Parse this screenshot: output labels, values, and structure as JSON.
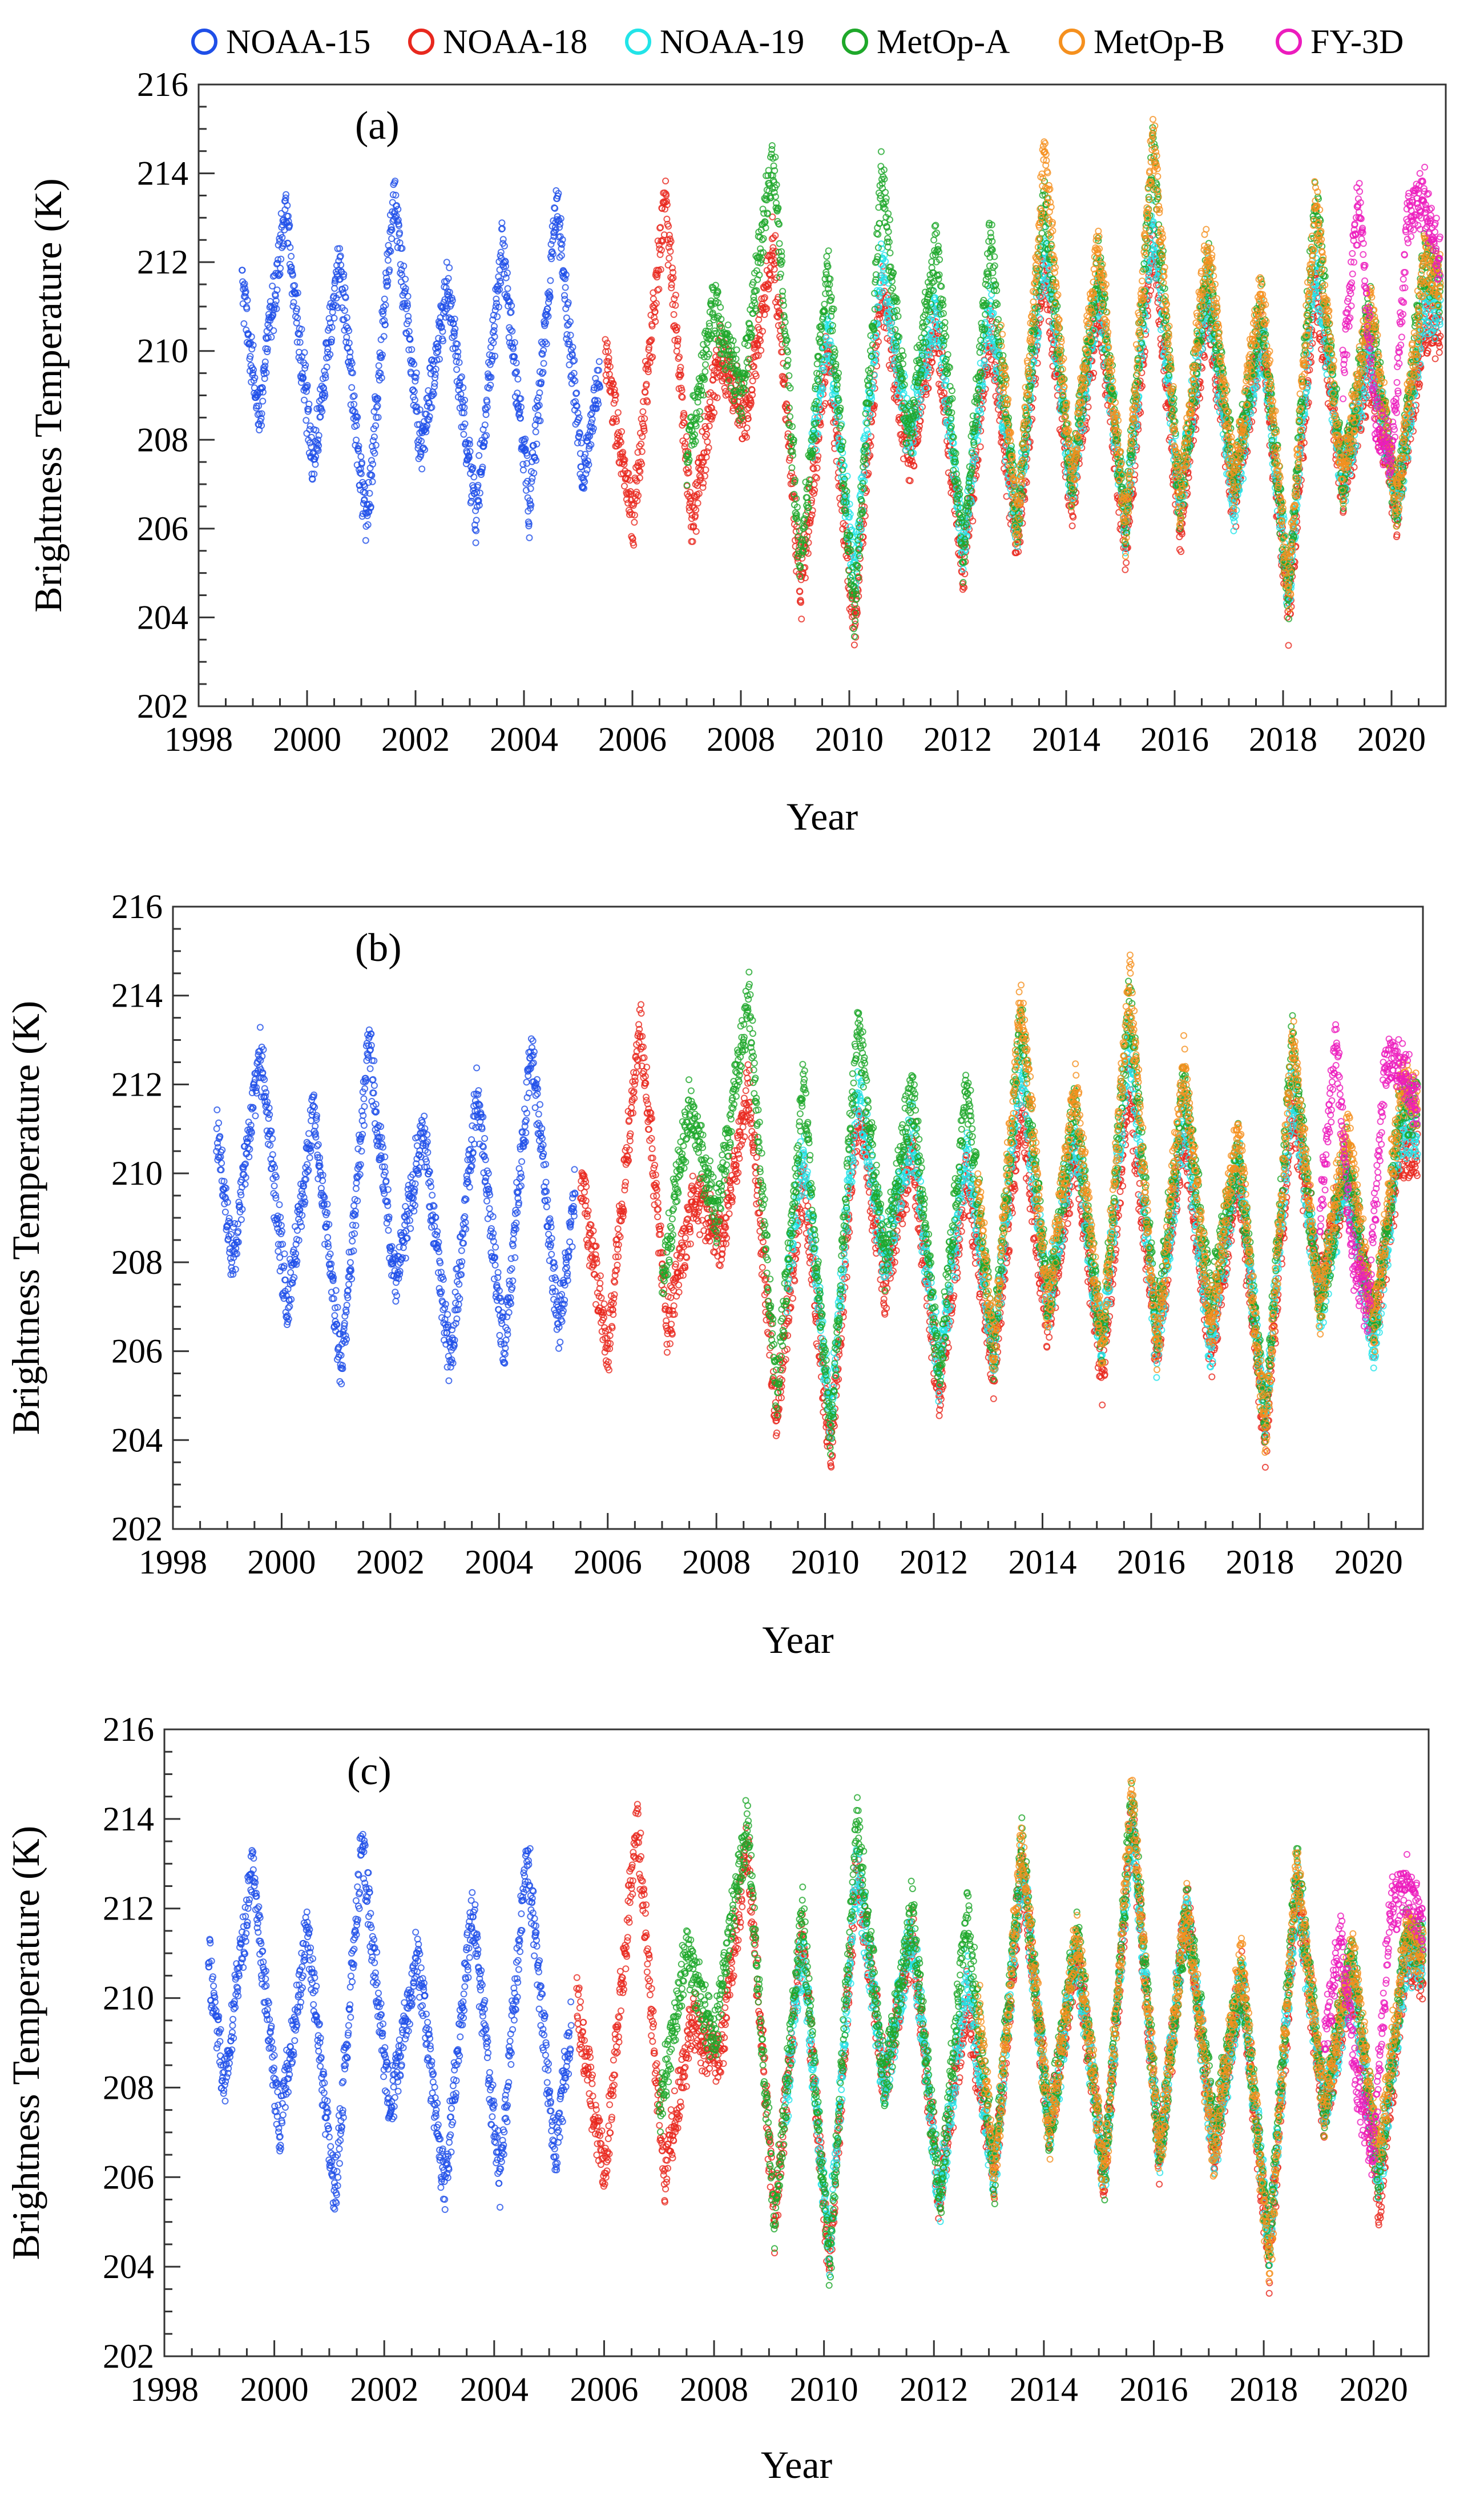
{
  "legend": [
    {
      "name": "NOAA-15",
      "color": "#1f4fe8"
    },
    {
      "name": "NOAA-18",
      "color": "#e8281e"
    },
    {
      "name": "NOAA-19",
      "color": "#22e4e8"
    },
    {
      "name": "MetOp-A",
      "color": "#1ea82a"
    },
    {
      "name": "MetOp-B",
      "color": "#f5901e"
    },
    {
      "name": "FY-3D",
      "color": "#ec1cbd"
    }
  ],
  "chart_data": [
    {
      "type": "scatter",
      "panel_label": "(a)",
      "xlabel": "Year",
      "ylabel": "Brightness Temperature (K)",
      "xlim": [
        1998,
        2021
      ],
      "ylim": [
        202,
        216
      ],
      "x_ticks": [
        "1998",
        "2000",
        "2002",
        "2004",
        "2006",
        "2008",
        "2010",
        "2012",
        "2014",
        "2016",
        "2018",
        "2020"
      ],
      "y_ticks": [
        "202",
        "204",
        "206",
        "208",
        "210",
        "212",
        "214",
        "216"
      ],
      "series": [
        {
          "name": "NOAA-15",
          "x": [
            1998.8,
            1999.1,
            1999.6,
            2000.1,
            2000.6,
            2001.1,
            2001.6,
            2002.1,
            2002.6,
            2003.1,
            2003.6,
            2004.1,
            2004.6,
            2005.1,
            2005.4
          ],
          "y": [
            211.5,
            208.5,
            213.2,
            207.5,
            212.0,
            206.0,
            213.5,
            207.8,
            211.5,
            206.2,
            212.3,
            206.5,
            213.3,
            207.0,
            209.5
          ]
        },
        {
          "name": "NOAA-18",
          "x": [
            2005.5,
            2006.0,
            2006.6,
            2007.1,
            2007.6,
            2008.1,
            2008.6,
            2009.1,
            2009.6,
            2010.1,
            2010.6,
            2011.1,
            2011.6,
            2012.1,
            2012.6,
            2013.1,
            2013.6,
            2014.1,
            2014.6,
            2015.1,
            2015.6,
            2016.1,
            2016.6,
            2017.1,
            2017.6,
            2018.1,
            2018.6,
            2019.1,
            2019.6,
            2020.1,
            2020.6,
            2020.9
          ],
          "y": [
            210.0,
            206.0,
            213.5,
            206.0,
            210.0,
            208.5,
            212.5,
            204.5,
            210.0,
            203.8,
            211.5,
            207.5,
            210.5,
            205.0,
            210.5,
            205.5,
            212.0,
            206.5,
            211.0,
            205.5,
            212.5,
            206.0,
            211.0,
            206.5,
            210.5,
            204.0,
            211.5,
            207.0,
            209.5,
            206.5,
            210.5,
            210.5
          ]
        },
        {
          "name": "NOAA-19",
          "x": [
            2009.3,
            2009.6,
            2010.1,
            2010.6,
            2011.1,
            2011.6,
            2012.1,
            2012.6,
            2013.1,
            2013.6,
            2014.1,
            2014.6,
            2015.1,
            2015.6,
            2016.1,
            2016.6,
            2017.1,
            2017.6,
            2018.1,
            2018.6,
            2019.1,
            2019.6,
            2020.1,
            2020.6,
            2020.9
          ],
          "y": [
            207.5,
            210.5,
            205.0,
            212.0,
            208.0,
            211.0,
            205.5,
            211.0,
            206.0,
            212.5,
            207.0,
            211.5,
            206.0,
            213.0,
            206.5,
            211.5,
            206.5,
            210.5,
            204.5,
            212.0,
            207.0,
            210.0,
            206.5,
            211.0,
            211.0
          ]
        },
        {
          "name": "MetOp-A",
          "x": [
            2007.0,
            2007.5,
            2008.0,
            2008.6,
            2009.1,
            2009.6,
            2010.1,
            2010.6,
            2011.1,
            2011.6,
            2012.1,
            2012.6,
            2013.1,
            2013.6,
            2014.1,
            2014.6,
            2015.1,
            2015.6,
            2016.1,
            2016.6,
            2017.1,
            2017.6,
            2018.1,
            2018.6,
            2019.1,
            2019.6,
            2020.1,
            2020.6,
            2020.9
          ],
          "y": [
            207.5,
            211.0,
            209.0,
            214.5,
            205.0,
            212.0,
            204.0,
            214.0,
            208.0,
            212.5,
            205.5,
            212.5,
            206.0,
            213.5,
            207.0,
            212.0,
            206.0,
            214.5,
            206.5,
            212.0,
            207.0,
            211.0,
            204.5,
            213.5,
            207.0,
            211.0,
            206.5,
            212.0,
            211.5
          ]
        },
        {
          "name": "MetOp-B",
          "x": [
            2012.8,
            2013.1,
            2013.6,
            2014.1,
            2014.6,
            2015.1,
            2015.6,
            2016.1,
            2016.6,
            2017.1,
            2017.6,
            2018.1,
            2018.6,
            2019.1,
            2019.6,
            2020.1,
            2020.6,
            2020.9
          ],
          "y": [
            210.0,
            206.0,
            214.5,
            207.0,
            212.5,
            206.0,
            215.0,
            206.5,
            212.5,
            207.0,
            211.5,
            204.5,
            213.5,
            207.0,
            211.0,
            206.5,
            212.0,
            211.5
          ]
        },
        {
          "name": "FY-3D",
          "x": [
            2019.1,
            2019.4,
            2019.7,
            2020.0,
            2020.3,
            2020.6,
            2020.9
          ],
          "y": [
            209.5,
            213.5,
            208.5,
            207.5,
            213.0,
            213.5,
            212.0
          ]
        }
      ]
    },
    {
      "type": "scatter",
      "panel_label": "(b)",
      "xlabel": "Year",
      "ylabel": "Brightness Temperature (K)",
      "xlim": [
        1998,
        2021
      ],
      "ylim": [
        202,
        216
      ],
      "x_ticks": [
        "1998",
        "2000",
        "2002",
        "2004",
        "2006",
        "2008",
        "2010",
        "2012",
        "2014",
        "2016",
        "2018",
        "2020"
      ],
      "y_ticks": [
        "202",
        "204",
        "206",
        "208",
        "210",
        "212",
        "214",
        "216"
      ],
      "series": [
        {
          "name": "NOAA-15",
          "x": [
            1998.8,
            1999.1,
            1999.6,
            2000.1,
            2000.6,
            2001.1,
            2001.6,
            2002.1,
            2002.6,
            2003.1,
            2003.6,
            2004.1,
            2004.6,
            2005.1,
            2005.4
          ],
          "y": [
            211.0,
            208.0,
            212.8,
            207.0,
            211.5,
            205.5,
            213.0,
            207.5,
            211.0,
            205.8,
            211.8,
            206.0,
            213.0,
            206.5,
            209.5
          ]
        },
        {
          "name": "NOAA-18",
          "x": [
            2005.5,
            2006.0,
            2006.6,
            2007.1,
            2007.6,
            2008.1,
            2008.6,
            2009.1,
            2009.6,
            2010.1,
            2010.6,
            2011.1,
            2011.6,
            2012.1,
            2012.6,
            2013.1,
            2013.6,
            2014.1,
            2014.6,
            2015.1,
            2015.6,
            2016.1,
            2016.6,
            2017.1,
            2017.6,
            2018.1,
            2018.6,
            2019.1,
            2019.6,
            2020.1,
            2020.6,
            2020.9
          ],
          "y": [
            210.0,
            206.0,
            213.5,
            206.5,
            209.5,
            208.5,
            212.0,
            204.5,
            210.0,
            203.5,
            211.5,
            207.5,
            210.5,
            205.0,
            210.0,
            205.5,
            211.5,
            206.5,
            210.5,
            205.5,
            212.0,
            206.0,
            211.0,
            206.0,
            210.0,
            204.0,
            211.5,
            207.5,
            210.0,
            206.5,
            210.5,
            210.5
          ]
        },
        {
          "name": "NOAA-19",
          "x": [
            2009.3,
            2009.6,
            2010.1,
            2010.6,
            2011.1,
            2011.6,
            2012.1,
            2012.6,
            2013.1,
            2013.6,
            2014.1,
            2014.6,
            2015.1,
            2015.6,
            2016.1,
            2016.6,
            2017.1,
            2017.6,
            2018.1,
            2018.6,
            2019.1,
            2019.6,
            2020.1,
            2020.6,
            2020.9
          ],
          "y": [
            207.5,
            210.5,
            204.5,
            212.0,
            208.0,
            211.0,
            205.5,
            210.5,
            206.0,
            212.5,
            207.0,
            211.0,
            206.0,
            213.0,
            206.0,
            211.5,
            206.0,
            210.5,
            204.5,
            212.0,
            207.0,
            210.0,
            206.0,
            211.0,
            211.0
          ]
        },
        {
          "name": "MetOp-A",
          "x": [
            2007.0,
            2007.5,
            2008.0,
            2008.6,
            2009.1,
            2009.6,
            2010.1,
            2010.6,
            2011.1,
            2011.6,
            2012.1,
            2012.6,
            2013.1,
            2013.6,
            2014.1,
            2014.6,
            2015.1,
            2015.6,
            2016.1,
            2016.6,
            2017.1,
            2017.6,
            2018.1,
            2018.6,
            2019.1,
            2019.6,
            2020.1,
            2020.6,
            2020.9
          ],
          "y": [
            207.5,
            211.5,
            209.0,
            214.0,
            205.0,
            212.0,
            204.0,
            213.5,
            208.0,
            212.0,
            205.5,
            212.0,
            206.0,
            213.5,
            207.0,
            211.5,
            206.0,
            214.0,
            206.5,
            212.0,
            207.0,
            210.5,
            204.5,
            213.0,
            207.0,
            210.5,
            206.5,
            211.5,
            211.5
          ]
        },
        {
          "name": "MetOp-B",
          "x": [
            2012.8,
            2013.1,
            2013.6,
            2014.1,
            2014.6,
            2015.1,
            2015.6,
            2016.1,
            2016.6,
            2017.1,
            2017.6,
            2018.1,
            2018.6,
            2019.1,
            2019.6,
            2020.1,
            2020.6,
            2020.9
          ],
          "y": [
            210.0,
            206.0,
            214.0,
            207.0,
            212.0,
            206.0,
            214.5,
            206.0,
            212.5,
            206.5,
            211.0,
            204.0,
            213.0,
            207.0,
            211.0,
            206.5,
            212.0,
            211.5
          ]
        },
        {
          "name": "FY-3D",
          "x": [
            2019.1,
            2019.4,
            2019.7,
            2020.0,
            2020.3,
            2020.6,
            2020.9
          ],
          "y": [
            209.0,
            213.0,
            208.0,
            207.0,
            212.5,
            212.5,
            211.5
          ]
        }
      ]
    },
    {
      "type": "scatter",
      "panel_label": "(c)",
      "xlabel": "Year",
      "ylabel": "Brightness Temperature (K)",
      "xlim": [
        1998,
        2021
      ],
      "ylim": [
        202,
        216
      ],
      "x_ticks": [
        "1998",
        "2000",
        "2002",
        "2004",
        "2006",
        "2008",
        "2010",
        "2012",
        "2014",
        "2016",
        "2018",
        "2020"
      ],
      "y_ticks": [
        "202",
        "204",
        "206",
        "208",
        "210",
        "212",
        "214",
        "216"
      ],
      "series": [
        {
          "name": "NOAA-15",
          "x": [
            1998.8,
            1999.1,
            1999.6,
            2000.1,
            2000.6,
            2001.1,
            2001.6,
            2002.1,
            2002.6,
            2003.1,
            2003.6,
            2004.1,
            2004.6,
            2005.1,
            2005.4
          ],
          "y": [
            211.0,
            208.0,
            213.0,
            207.0,
            211.5,
            205.5,
            213.5,
            207.5,
            211.0,
            205.8,
            212.0,
            206.0,
            213.3,
            206.5,
            209.5
          ]
        },
        {
          "name": "NOAA-18",
          "x": [
            2005.5,
            2006.0,
            2006.6,
            2007.1,
            2007.6,
            2008.1,
            2008.6,
            2009.1,
            2009.6,
            2010.1,
            2010.6,
            2011.1,
            2011.6,
            2012.1,
            2012.6,
            2013.1,
            2013.6,
            2014.1,
            2014.6,
            2015.1,
            2015.6,
            2016.1,
            2016.6,
            2017.1,
            2017.6,
            2018.1,
            2018.6,
            2019.1,
            2019.6,
            2020.1,
            2020.6,
            2020.9
          ],
          "y": [
            210.0,
            206.0,
            214.0,
            206.0,
            209.5,
            208.5,
            213.5,
            205.0,
            211.5,
            204.0,
            213.0,
            208.0,
            211.5,
            205.5,
            210.0,
            206.0,
            213.0,
            207.0,
            211.0,
            206.0,
            214.0,
            206.5,
            212.0,
            206.5,
            210.5,
            204.0,
            212.5,
            207.5,
            210.5,
            205.5,
            211.0,
            210.5
          ]
        },
        {
          "name": "NOAA-19",
          "x": [
            2009.3,
            2009.6,
            2010.1,
            2010.6,
            2011.1,
            2011.6,
            2012.1,
            2012.6,
            2013.1,
            2013.6,
            2014.1,
            2014.6,
            2015.1,
            2015.6,
            2016.1,
            2016.6,
            2017.1,
            2017.6,
            2018.1,
            2018.6,
            2019.1,
            2019.6,
            2020.1,
            2020.6,
            2020.9
          ],
          "y": [
            207.5,
            211.0,
            204.5,
            213.0,
            208.0,
            211.5,
            205.5,
            210.5,
            206.0,
            213.0,
            207.0,
            211.0,
            206.0,
            214.0,
            206.5,
            212.0,
            206.5,
            210.5,
            204.5,
            212.5,
            207.5,
            210.5,
            206.0,
            211.0,
            211.0
          ]
        },
        {
          "name": "MetOp-A",
          "x": [
            2007.0,
            2007.5,
            2008.0,
            2008.6,
            2009.1,
            2009.6,
            2010.1,
            2010.6,
            2011.1,
            2011.6,
            2012.1,
            2012.6,
            2013.1,
            2013.6,
            2014.1,
            2014.6,
            2015.1,
            2015.6,
            2016.1,
            2016.6,
            2017.1,
            2017.6,
            2018.1,
            2018.6,
            2019.1,
            2019.6,
            2020.1,
            2020.6,
            2020.9
          ],
          "y": [
            207.5,
            211.0,
            209.0,
            214.0,
            205.0,
            212.0,
            204.0,
            214.0,
            208.0,
            212.0,
            205.5,
            212.0,
            206.0,
            213.5,
            207.0,
            211.5,
            206.0,
            214.5,
            206.5,
            212.0,
            207.0,
            210.5,
            204.5,
            213.0,
            207.5,
            211.0,
            206.0,
            211.5,
            211.0
          ]
        },
        {
          "name": "MetOp-B",
          "x": [
            2012.8,
            2013.1,
            2013.6,
            2014.1,
            2014.6,
            2015.1,
            2015.6,
            2016.1,
            2016.6,
            2017.1,
            2017.6,
            2018.1,
            2018.6,
            2019.1,
            2019.6,
            2020.1,
            2020.6,
            2020.9
          ],
          "y": [
            210.0,
            206.0,
            213.5,
            207.0,
            211.5,
            206.0,
            214.5,
            206.5,
            212.0,
            206.5,
            211.0,
            204.0,
            213.0,
            207.5,
            211.0,
            206.5,
            211.5,
            211.0
          ]
        },
        {
          "name": "FY-3D",
          "x": [
            2019.1,
            2019.4,
            2019.7,
            2020.0,
            2020.3,
            2020.6,
            2020.9
          ],
          "y": [
            209.0,
            211.5,
            208.0,
            206.5,
            212.0,
            212.5,
            211.5
          ]
        }
      ]
    }
  ]
}
